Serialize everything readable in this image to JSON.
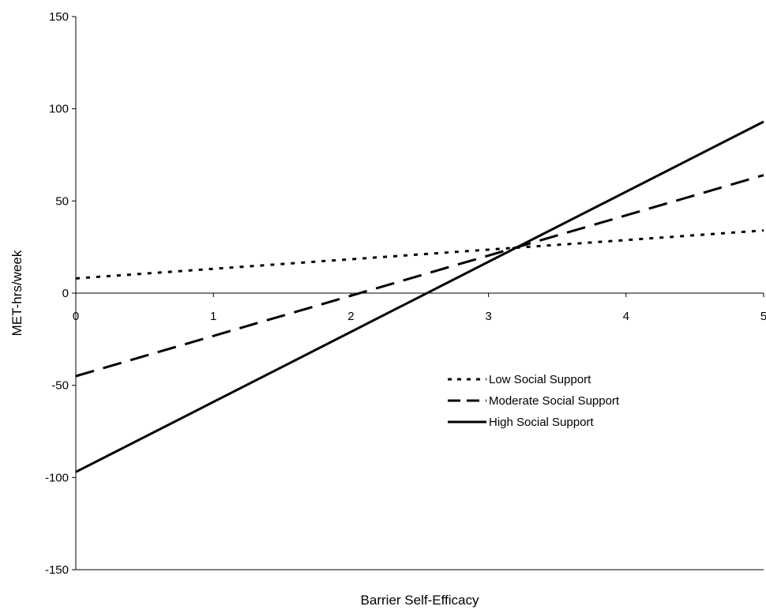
{
  "chart_data": {
    "type": "line",
    "title": "",
    "xlabel": "Barrier Self-Efficacy",
    "ylabel": "MET-hrs/week",
    "xlim": [
      0,
      5
    ],
    "ylim": [
      -150,
      150
    ],
    "x_ticks": [
      0,
      1,
      2,
      3,
      4,
      5
    ],
    "y_ticks": [
      -150,
      -100,
      -50,
      0,
      50,
      100,
      150
    ],
    "x_tick_labels": [
      "0",
      "1",
      "2",
      "3",
      "4",
      "5"
    ],
    "y_tick_labels": [
      "-150",
      "-100",
      "-50",
      "0",
      "50",
      "100",
      "150"
    ],
    "grid": false,
    "legend_position": "center-right",
    "series": [
      {
        "name": "Low Social Support",
        "x": [
          0,
          5
        ],
        "values": [
          8,
          34
        ],
        "style": "dotted",
        "color": "#000000"
      },
      {
        "name": "Moderate Social Support",
        "x": [
          0,
          5
        ],
        "values": [
          -45,
          64
        ],
        "style": "dashed",
        "color": "#000000"
      },
      {
        "name": "High Social Support",
        "x": [
          0,
          5
        ],
        "values": [
          -97,
          93
        ],
        "style": "solid",
        "color": "#000000"
      }
    ]
  }
}
